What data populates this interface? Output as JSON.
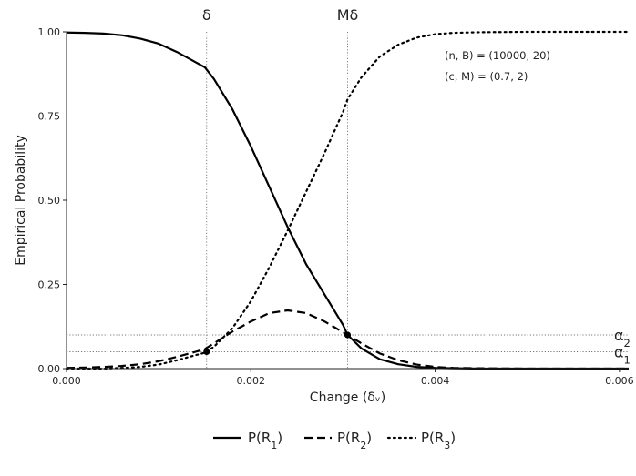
{
  "chart_data": {
    "type": "line",
    "xlabel": "Change (δᵥ)",
    "ylabel": "Empirical Probability",
    "xlim": [
      0,
      0.0061
    ],
    "ylim": [
      0,
      1
    ],
    "x_ticks": [
      "0.000",
      "0.002",
      "0.004",
      "0.006"
    ],
    "x_tick_values": [
      0,
      0.002,
      0.004,
      0.006
    ],
    "y_ticks": [
      "0.00",
      "0.25",
      "0.50",
      "0.75",
      "1.00"
    ],
    "y_tick_values": [
      0,
      0.25,
      0.5,
      0.75,
      1.0
    ],
    "x": [
      0,
      0.0002,
      0.0004,
      0.0006,
      0.0008,
      0.001,
      0.0012,
      0.0014,
      0.0015,
      0.0016,
      0.0018,
      0.002,
      0.0022,
      0.0024,
      0.0026,
      0.0028,
      0.003,
      0.00305,
      0.0032,
      0.0034,
      0.0036,
      0.0038,
      0.004,
      0.0042,
      0.0045,
      0.005,
      0.0055,
      0.0061
    ],
    "series": [
      {
        "name": "P(R1)",
        "style": "solid",
        "values": [
          0.998,
          0.997,
          0.995,
          0.99,
          0.98,
          0.965,
          0.94,
          0.91,
          0.895,
          0.86,
          0.77,
          0.66,
          0.54,
          0.42,
          0.31,
          0.22,
          0.13,
          0.1,
          0.06,
          0.028,
          0.013,
          0.005,
          0.002,
          0.001,
          0.0,
          0.0,
          0.0,
          0.0
        ]
      },
      {
        "name": "P(R2)",
        "style": "dashed",
        "values": [
          0.002,
          0.003,
          0.005,
          0.008,
          0.013,
          0.022,
          0.035,
          0.05,
          0.058,
          0.075,
          0.11,
          0.14,
          0.165,
          0.173,
          0.165,
          0.14,
          0.108,
          0.1,
          0.075,
          0.045,
          0.025,
          0.012,
          0.005,
          0.002,
          0.001,
          0.0,
          0.0,
          0.0
        ]
      },
      {
        "name": "P(R3)",
        "style": "dotted",
        "values": [
          0.0,
          0.0,
          0.0,
          0.002,
          0.005,
          0.012,
          0.025,
          0.04,
          0.047,
          0.065,
          0.12,
          0.2,
          0.3,
          0.41,
          0.525,
          0.64,
          0.762,
          0.8,
          0.865,
          0.927,
          0.962,
          0.983,
          0.993,
          0.997,
          0.999,
          1.0,
          1.0,
          1.0
        ]
      }
    ],
    "legend": {
      "position": "bottom",
      "entries": [
        {
          "prefix": "P(R",
          "sub": "1",
          "suffix": ")",
          "style": "solid"
        },
        {
          "prefix": "P(R",
          "sub": "2",
          "suffix": ")",
          "style": "dashed"
        },
        {
          "prefix": "P(R",
          "sub": "3",
          "suffix": ")",
          "style": "dotted"
        }
      ]
    },
    "vertical_refs": [
      {
        "label": "δ",
        "x": 0.00152
      },
      {
        "label": "Mδ",
        "x": 0.00305
      }
    ],
    "horizontal_refs": [
      {
        "label": "α",
        "sub": "2",
        "y": 0.1
      },
      {
        "label": "α",
        "sub": "1",
        "y": 0.05
      }
    ],
    "marked_points": [
      {
        "x": 0.00152,
        "y": 0.05
      },
      {
        "x": 0.00305,
        "y": 0.1
      }
    ],
    "annotations": [
      "(n, B) = (10000, 20)",
      "(c, M) = (0.7, 2)"
    ],
    "grid": false
  }
}
